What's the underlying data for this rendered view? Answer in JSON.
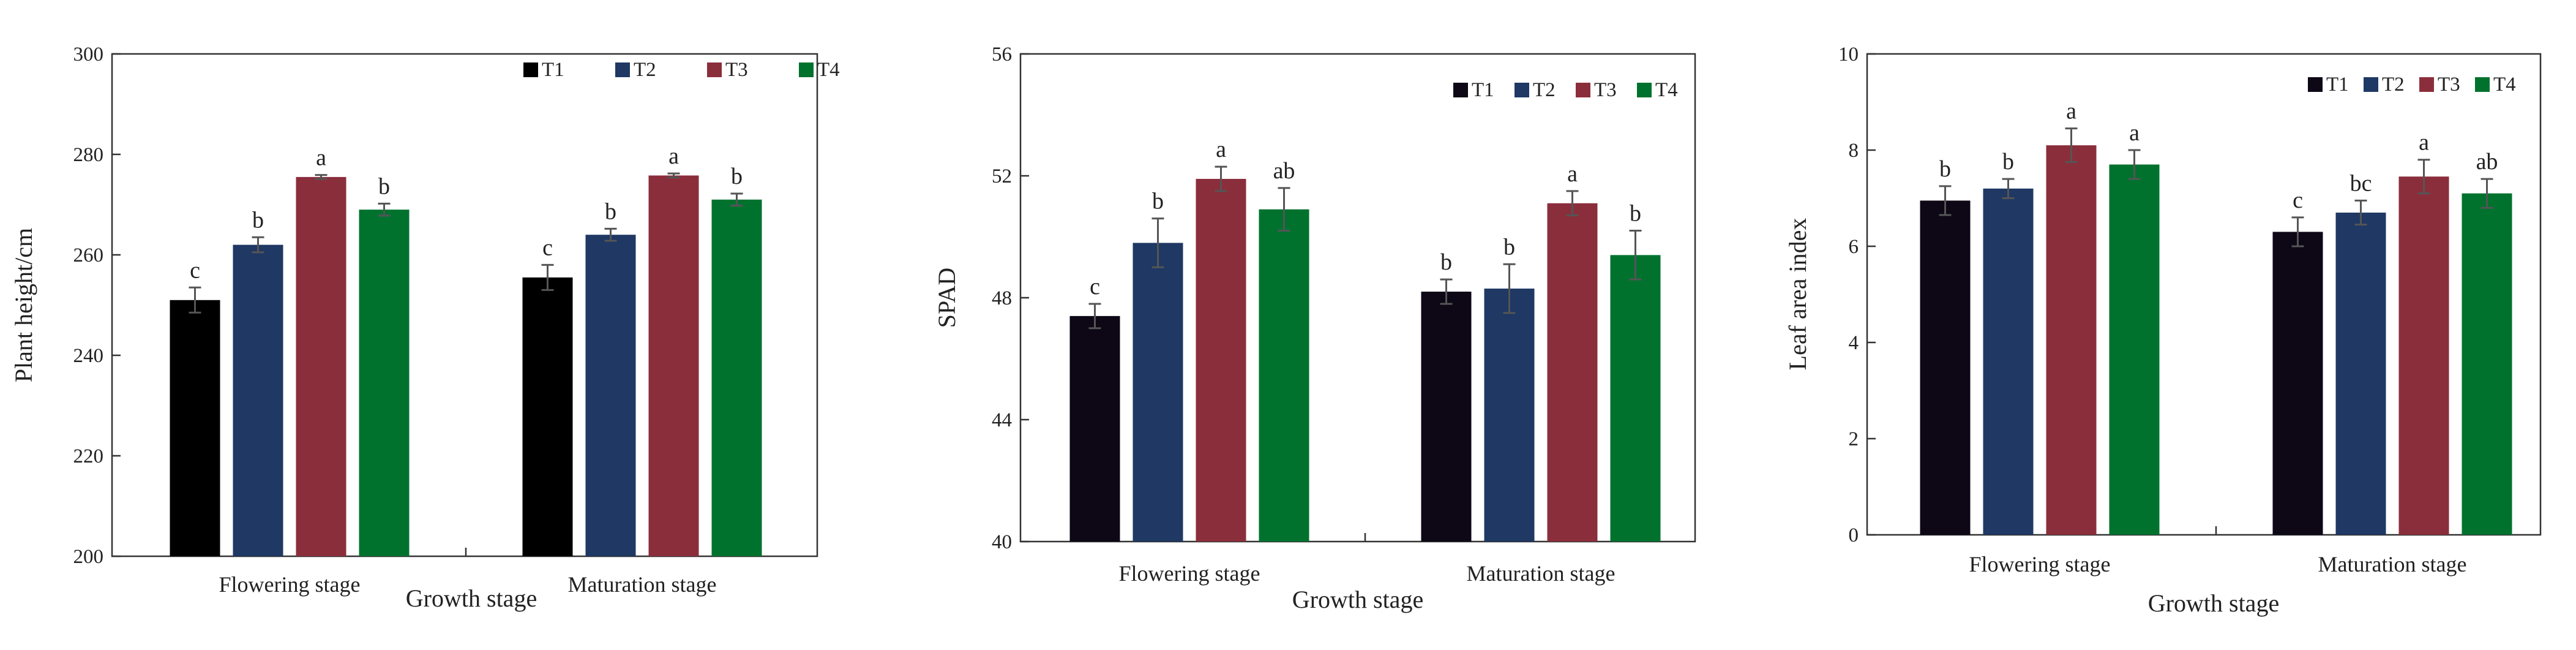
{
  "colors": {
    "T1": "#000000",
    "T2": "#1f3864",
    "T3": "#8b2e3c",
    "T4": "#00722e",
    "T1_alt": "#0d0716"
  },
  "chart_data": [
    {
      "type": "bar",
      "title": "",
      "xlabel": "Growth stage",
      "ylabel": "Plant height/cm",
      "ylim": [
        200,
        300
      ],
      "yticks": [
        "200",
        "220",
        "240",
        "260",
        "280",
        "300"
      ],
      "categories": [
        "Flowering stage",
        "Maturation stage"
      ],
      "series": [
        {
          "name": "T1",
          "values": [
            251,
            255.5
          ],
          "errors": [
            2.5,
            2.5
          ],
          "labels": [
            "c",
            "c"
          ]
        },
        {
          "name": "T2",
          "values": [
            262,
            264
          ],
          "errors": [
            1.5,
            1.2
          ],
          "labels": [
            "b",
            "b"
          ]
        },
        {
          "name": "T3",
          "values": [
            275.5,
            275.8
          ],
          "errors": [
            0.4,
            0.4
          ],
          "labels": [
            "a",
            "a"
          ]
        },
        {
          "name": "T4",
          "values": [
            269,
            271
          ],
          "errors": [
            1.2,
            1.2
          ],
          "labels": [
            "b",
            "b"
          ]
        }
      ],
      "legend": "top-right",
      "grid": false
    },
    {
      "type": "bar",
      "title": "",
      "xlabel": "Growth stage",
      "ylabel": "SPAD",
      "ylim": [
        40,
        56
      ],
      "yticks": [
        "40",
        "44",
        "48",
        "52",
        "56"
      ],
      "categories": [
        "Flowering stage",
        "Maturation stage"
      ],
      "series": [
        {
          "name": "T1",
          "values": [
            47.4,
            48.2
          ],
          "errors": [
            0.4,
            0.4
          ],
          "labels": [
            "c",
            "b"
          ]
        },
        {
          "name": "T2",
          "values": [
            49.8,
            48.3
          ],
          "errors": [
            0.8,
            0.8
          ],
          "labels": [
            "b",
            "b"
          ]
        },
        {
          "name": "T3",
          "values": [
            51.9,
            51.1
          ],
          "errors": [
            0.4,
            0.4
          ],
          "labels": [
            "a",
            "a"
          ]
        },
        {
          "name": "T4",
          "values": [
            50.9,
            49.4
          ],
          "errors": [
            0.7,
            0.8
          ],
          "labels": [
            "ab",
            "b"
          ]
        }
      ],
      "legend": "top-right",
      "grid": false
    },
    {
      "type": "bar",
      "title": "",
      "xlabel": "Growth stage",
      "ylabel": "Leaf area index",
      "ylim": [
        0,
        10
      ],
      "yticks": [
        "0",
        "2",
        "4",
        "6",
        "8",
        "10"
      ],
      "categories": [
        "Flowering stage",
        "Maturation stage"
      ],
      "series": [
        {
          "name": "T1",
          "values": [
            6.95,
            6.3
          ],
          "errors": [
            0.3,
            0.3
          ],
          "labels": [
            "b",
            "c"
          ]
        },
        {
          "name": "T2",
          "values": [
            7.2,
            6.7
          ],
          "errors": [
            0.2,
            0.25
          ],
          "labels": [
            "b",
            "bc"
          ]
        },
        {
          "name": "T3",
          "values": [
            8.1,
            7.45
          ],
          "errors": [
            0.35,
            0.35
          ],
          "labels": [
            "a",
            "a"
          ]
        },
        {
          "name": "T4",
          "values": [
            7.7,
            7.1
          ],
          "errors": [
            0.3,
            0.3
          ],
          "labels": [
            "a",
            "ab"
          ]
        }
      ],
      "legend": "top-right",
      "grid": false
    }
  ]
}
